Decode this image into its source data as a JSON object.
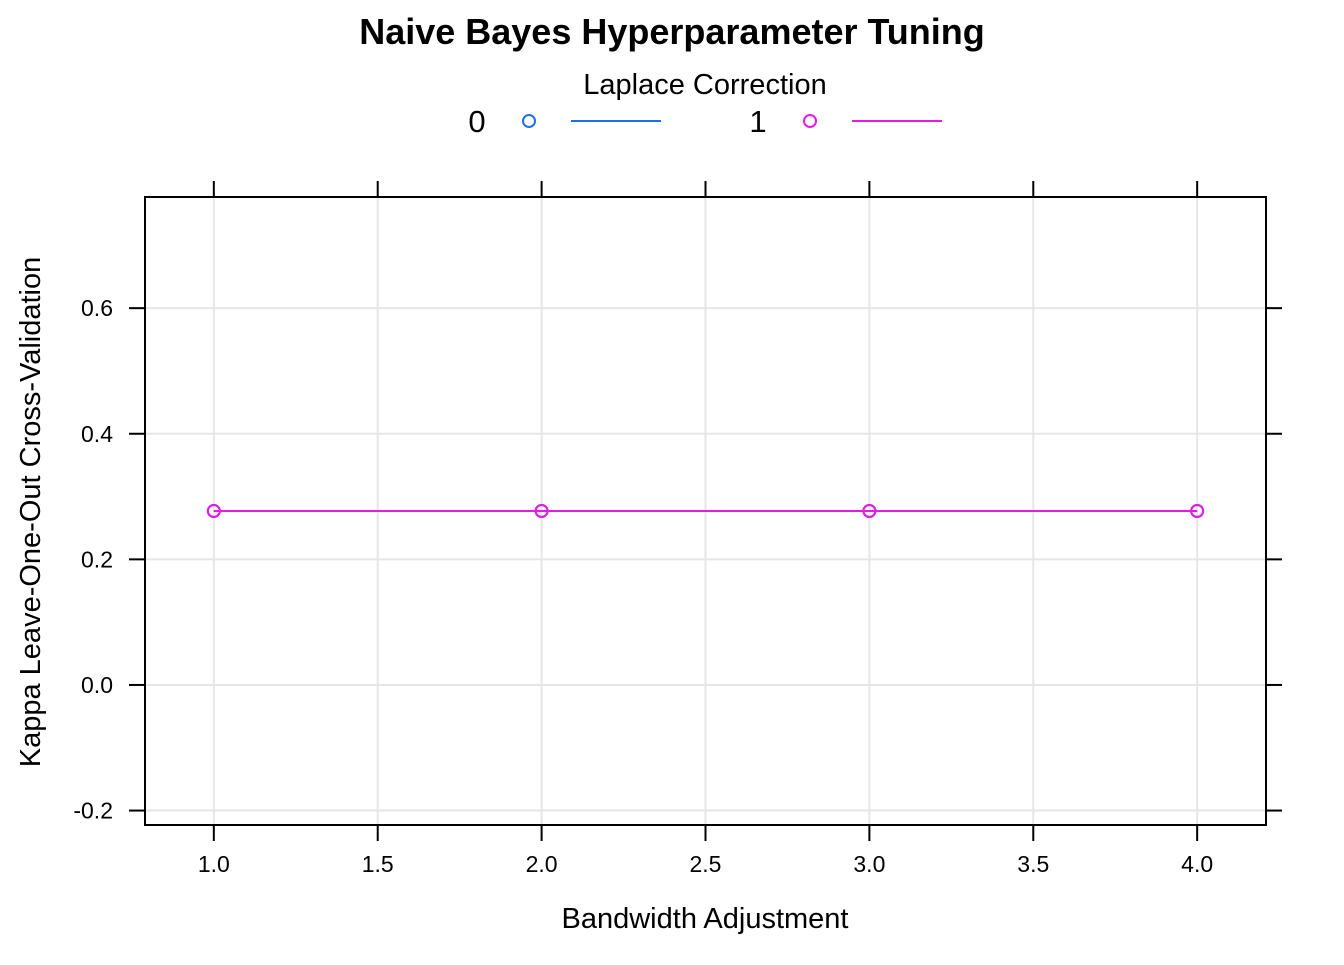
{
  "chart_data": {
    "type": "line",
    "title": "Naive Bayes Hyperparameter Tuning",
    "xlabel": "Bandwidth Adjustment",
    "ylabel": "Kappa Leave-One-Out Cross-Validation",
    "xlim": [
      0.79,
      4.21
    ],
    "ylim": [
      -0.223,
      0.777
    ],
    "x_ticks": [
      1.0,
      1.5,
      2.0,
      2.5,
      3.0,
      3.5,
      4.0
    ],
    "x_tick_labels": [
      "1.0",
      "1.5",
      "2.0",
      "2.5",
      "3.0",
      "3.5",
      "4.0"
    ],
    "y_ticks": [
      -0.2,
      0.0,
      0.2,
      0.4,
      0.6
    ],
    "y_tick_labels": [
      "-0.2",
      "0.0",
      "0.2",
      "0.4",
      "0.6"
    ],
    "grid": true,
    "legend": {
      "title": "Laplace Correction",
      "placement": "top"
    },
    "series": [
      {
        "name": "0",
        "color": "#1f6fe5",
        "x": [
          1.0,
          2.0,
          3.0,
          4.0
        ],
        "y": [
          0.277,
          0.277,
          0.277,
          0.277
        ]
      },
      {
        "name": "1",
        "color": "#e51ae5",
        "x": [
          1.0,
          2.0,
          3.0,
          4.0
        ],
        "y": [
          0.277,
          0.277,
          0.277,
          0.277
        ]
      }
    ]
  }
}
